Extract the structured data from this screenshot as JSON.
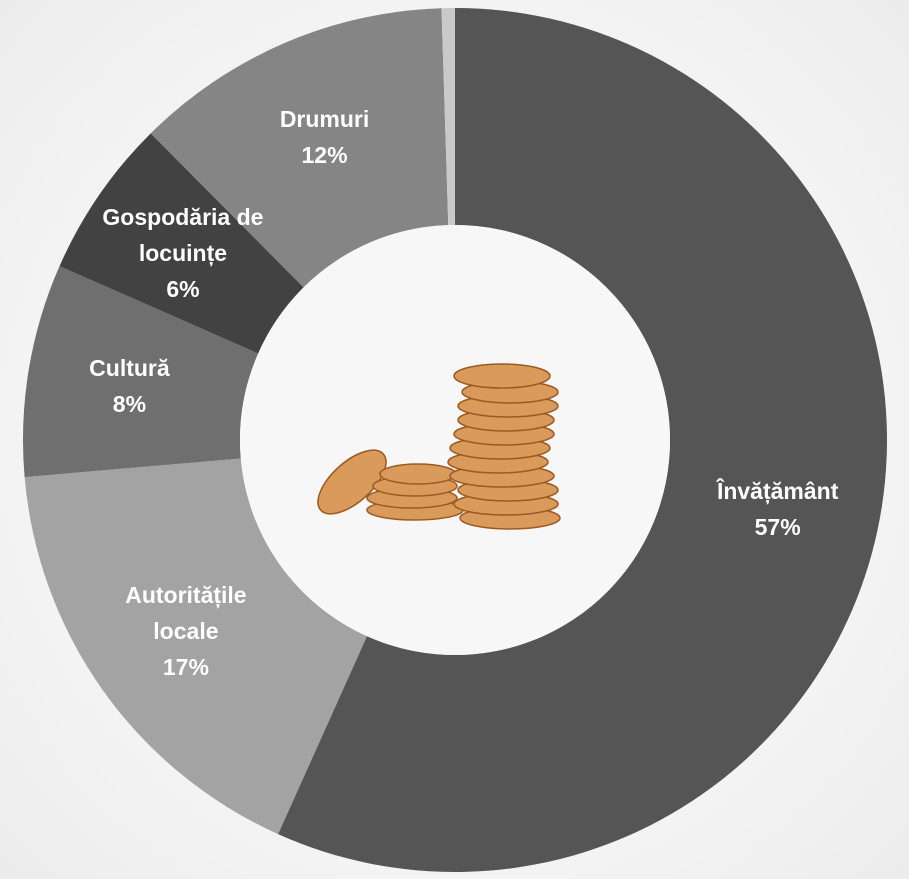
{
  "chart_data": {
    "type": "donut",
    "categories": [
      "Învățământ",
      "Autoritățile locale",
      "Cultură",
      "Gospodăria de locuințe",
      "Drumuri",
      null
    ],
    "values": [
      57,
      17,
      8,
      6,
      12,
      0.5
    ],
    "value_labels": [
      "57%",
      "17%",
      "8%",
      "6%",
      "12%",
      null
    ],
    "colors": [
      "#555555",
      "#a3a3a3",
      "#6f6f6f",
      "#424242",
      "#858585",
      "#c9c9c9"
    ]
  }
}
